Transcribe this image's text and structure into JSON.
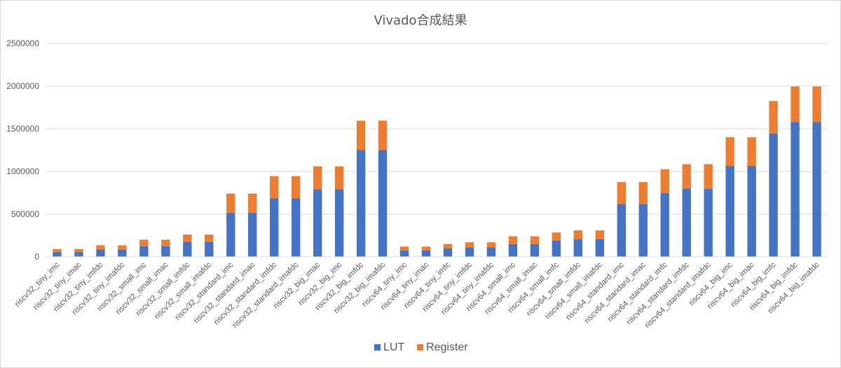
{
  "chart_data": {
    "type": "bar",
    "stacked": true,
    "title": "Vivado合成結果",
    "xlabel": "",
    "ylabel": "",
    "ylim": [
      0,
      2500000
    ],
    "y_ticks": [
      "0",
      "500000",
      "1000000",
      "1500000",
      "2000000",
      "2500000"
    ],
    "grid": true,
    "legend_position": "bottom",
    "categories": [
      "riscv32_tiny_imc",
      "riscv32_tiny_imac",
      "riscv32_tiny_imfdc",
      "riscv32_tiny_imafdc",
      "riscv32_small_imc",
      "riscv32_small_imac",
      "riscv32_small_imfdc",
      "riscv32_small_imafdc",
      "riscv32_standard_imc",
      "riscv32_standard_imac",
      "riscv32_standard_imfdc",
      "riscv32_standard_imafdc",
      "riscv32_big_imac",
      "riscv32_big_imc",
      "riscv32_big_imfdc",
      "riscv32_big_imafdc",
      "riscv64_tiny_imc",
      "riscv64_tiny_imac",
      "riscv64_tiny_imfc",
      "riscv64_tiny_imfdc",
      "riscv64_tiny_imafdc",
      "riscv64_small_imc",
      "riscv64_small_imac",
      "riscv64_small_imfc",
      "riscv64_small_imfdc",
      "riscv64_small_imafdc",
      "riscv64_standard_imc",
      "riscv64_standard_imac",
      "riscv64_standard_imfc",
      "riscv64_standard_imfdc",
      "riscv64_standard_imafdc",
      "riscv64_big_imc",
      "riscv64_big_imac",
      "riscv64_big_imfc",
      "riscv64_big_imfdc",
      "riscv64_big_imafdc"
    ],
    "series": [
      {
        "name": "LUT",
        "color": "#4472c4",
        "values": [
          55000,
          55000,
          85000,
          85000,
          125000,
          125000,
          175000,
          175000,
          515000,
          515000,
          685000,
          685000,
          790000,
          790000,
          1250000,
          1250000,
          75000,
          75000,
          100000,
          110000,
          110000,
          150000,
          150000,
          190000,
          205000,
          205000,
          620000,
          620000,
          745000,
          795000,
          795000,
          1065000,
          1065000,
          1445000,
          1580000,
          1580000
        ]
      },
      {
        "name": "Register",
        "color": "#ed7d31",
        "values": [
          35000,
          35000,
          50000,
          50000,
          75000,
          75000,
          85000,
          85000,
          225000,
          225000,
          260000,
          260000,
          270000,
          270000,
          345000,
          345000,
          45000,
          45000,
          50000,
          60000,
          60000,
          90000,
          90000,
          95000,
          105000,
          105000,
          255000,
          255000,
          280000,
          290000,
          290000,
          335000,
          335000,
          380000,
          415000,
          415000
        ]
      }
    ]
  }
}
